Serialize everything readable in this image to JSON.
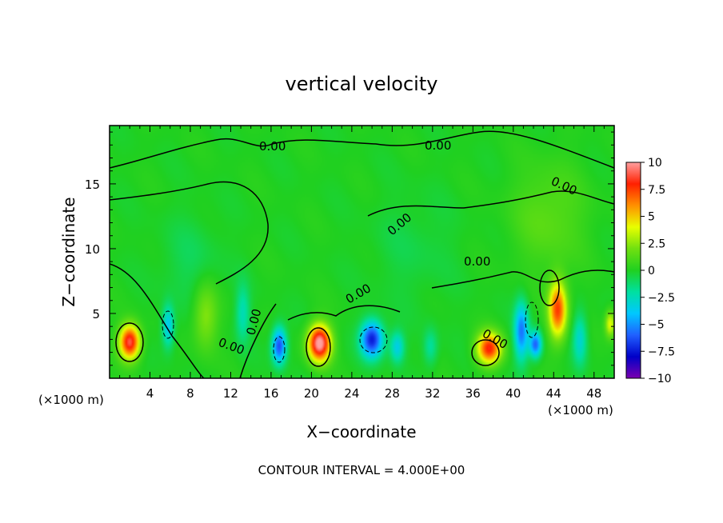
{
  "chart_data": {
    "type": "heatmap",
    "title": "vertical velocity",
    "xlabel": "X−coordinate",
    "ylabel": "Z−coordinate",
    "x_unit_label": "(×1000 m)",
    "x_unit_label_right": "(×1000 m)",
    "footer": "CONTOUR INTERVAL = 4.000E+00",
    "xlim": [
      0,
      50
    ],
    "ylim": [
      0,
      19.5
    ],
    "xticks": [
      4,
      8,
      12,
      16,
      20,
      24,
      28,
      32,
      36,
      40,
      44,
      48
    ],
    "xtick_labels": [
      "4",
      "8",
      "12",
      "16",
      "20",
      "24",
      "28",
      "32",
      "36",
      "40",
      "44",
      "48"
    ],
    "yticks": [
      5,
      10,
      15
    ],
    "ytick_labels": [
      "5",
      "10",
      "15"
    ],
    "colorbar": {
      "min": -10,
      "max": 10,
      "ticks": [
        10,
        7.5,
        5,
        2.5,
        0,
        -2.5,
        -5,
        -7.5,
        -10
      ],
      "tick_labels": [
        "10",
        "7.5",
        "5",
        "2.5",
        "0",
        "−2.5",
        "−5",
        "−7.5",
        "−10"
      ],
      "colors": [
        "#7a00b0",
        "#0000c8",
        "#2060ff",
        "#00c8ff",
        "#00e0a0",
        "#20d020",
        "#70e010",
        "#e8ff00",
        "#ff9000",
        "#ff2000",
        "#ffa0a0"
      ]
    },
    "contour_labels": [
      "0.00",
      "0.00",
      "0.00",
      "0.00",
      "0.00",
      "0.00",
      "0.00",
      "0.00",
      "0.00"
    ],
    "features": [
      {
        "x": 2.0,
        "z": 2.8,
        "w": 9,
        "sx": 1.0,
        "sz": 1.3
      },
      {
        "x": 5.8,
        "z": 4.0,
        "w": -3.8,
        "sx": 0.6,
        "sz": 1.6
      },
      {
        "x": 9.5,
        "z": 4.8,
        "w": 2.5,
        "sx": 1.2,
        "sz": 2.5
      },
      {
        "x": 13.2,
        "z": 5.0,
        "w": -2.4,
        "sx": 0.7,
        "sz": 2.2
      },
      {
        "x": 16.8,
        "z": 2.5,
        "w": -6.5,
        "sx": 0.7,
        "sz": 1.4
      },
      {
        "x": 20.8,
        "z": 2.7,
        "w": 10.5,
        "sx": 1.1,
        "sz": 1.4
      },
      {
        "x": 26.0,
        "z": 3.0,
        "w": -7.5,
        "sx": 1.1,
        "sz": 1.4
      },
      {
        "x": 28.5,
        "z": 2.4,
        "w": -3.5,
        "sx": 0.7,
        "sz": 1.2
      },
      {
        "x": 31.8,
        "z": 2.4,
        "w": -2.0,
        "sx": 0.7,
        "sz": 1.4
      },
      {
        "x": 37.6,
        "z": 2.3,
        "w": 8.0,
        "sx": 1.2,
        "sz": 1.2
      },
      {
        "x": 40.8,
        "z": 3.6,
        "w": -5.5,
        "sx": 0.7,
        "sz": 2.2
      },
      {
        "x": 42.2,
        "z": 2.6,
        "w": -6.0,
        "sx": 0.6,
        "sz": 1.0
      },
      {
        "x": 44.4,
        "z": 5.3,
        "w": 7.5,
        "sx": 0.9,
        "sz": 2.2
      },
      {
        "x": 46.6,
        "z": 3.0,
        "w": -3.0,
        "sx": 0.7,
        "sz": 2.0
      },
      {
        "x": 49.6,
        "z": 4.2,
        "w": 4.0,
        "sx": 0.5,
        "sz": 1.0
      },
      {
        "x": 43.5,
        "z": 12.5,
        "w": 1.5,
        "sx": 3.5,
        "sz": 4.0
      },
      {
        "x": 8.0,
        "z": 9.0,
        "w": -0.8,
        "sx": 3.0,
        "sz": 3.5
      },
      {
        "x": 30.0,
        "z": 10.0,
        "w": -0.6,
        "sx": 4.0,
        "sz": 4.0
      }
    ]
  }
}
